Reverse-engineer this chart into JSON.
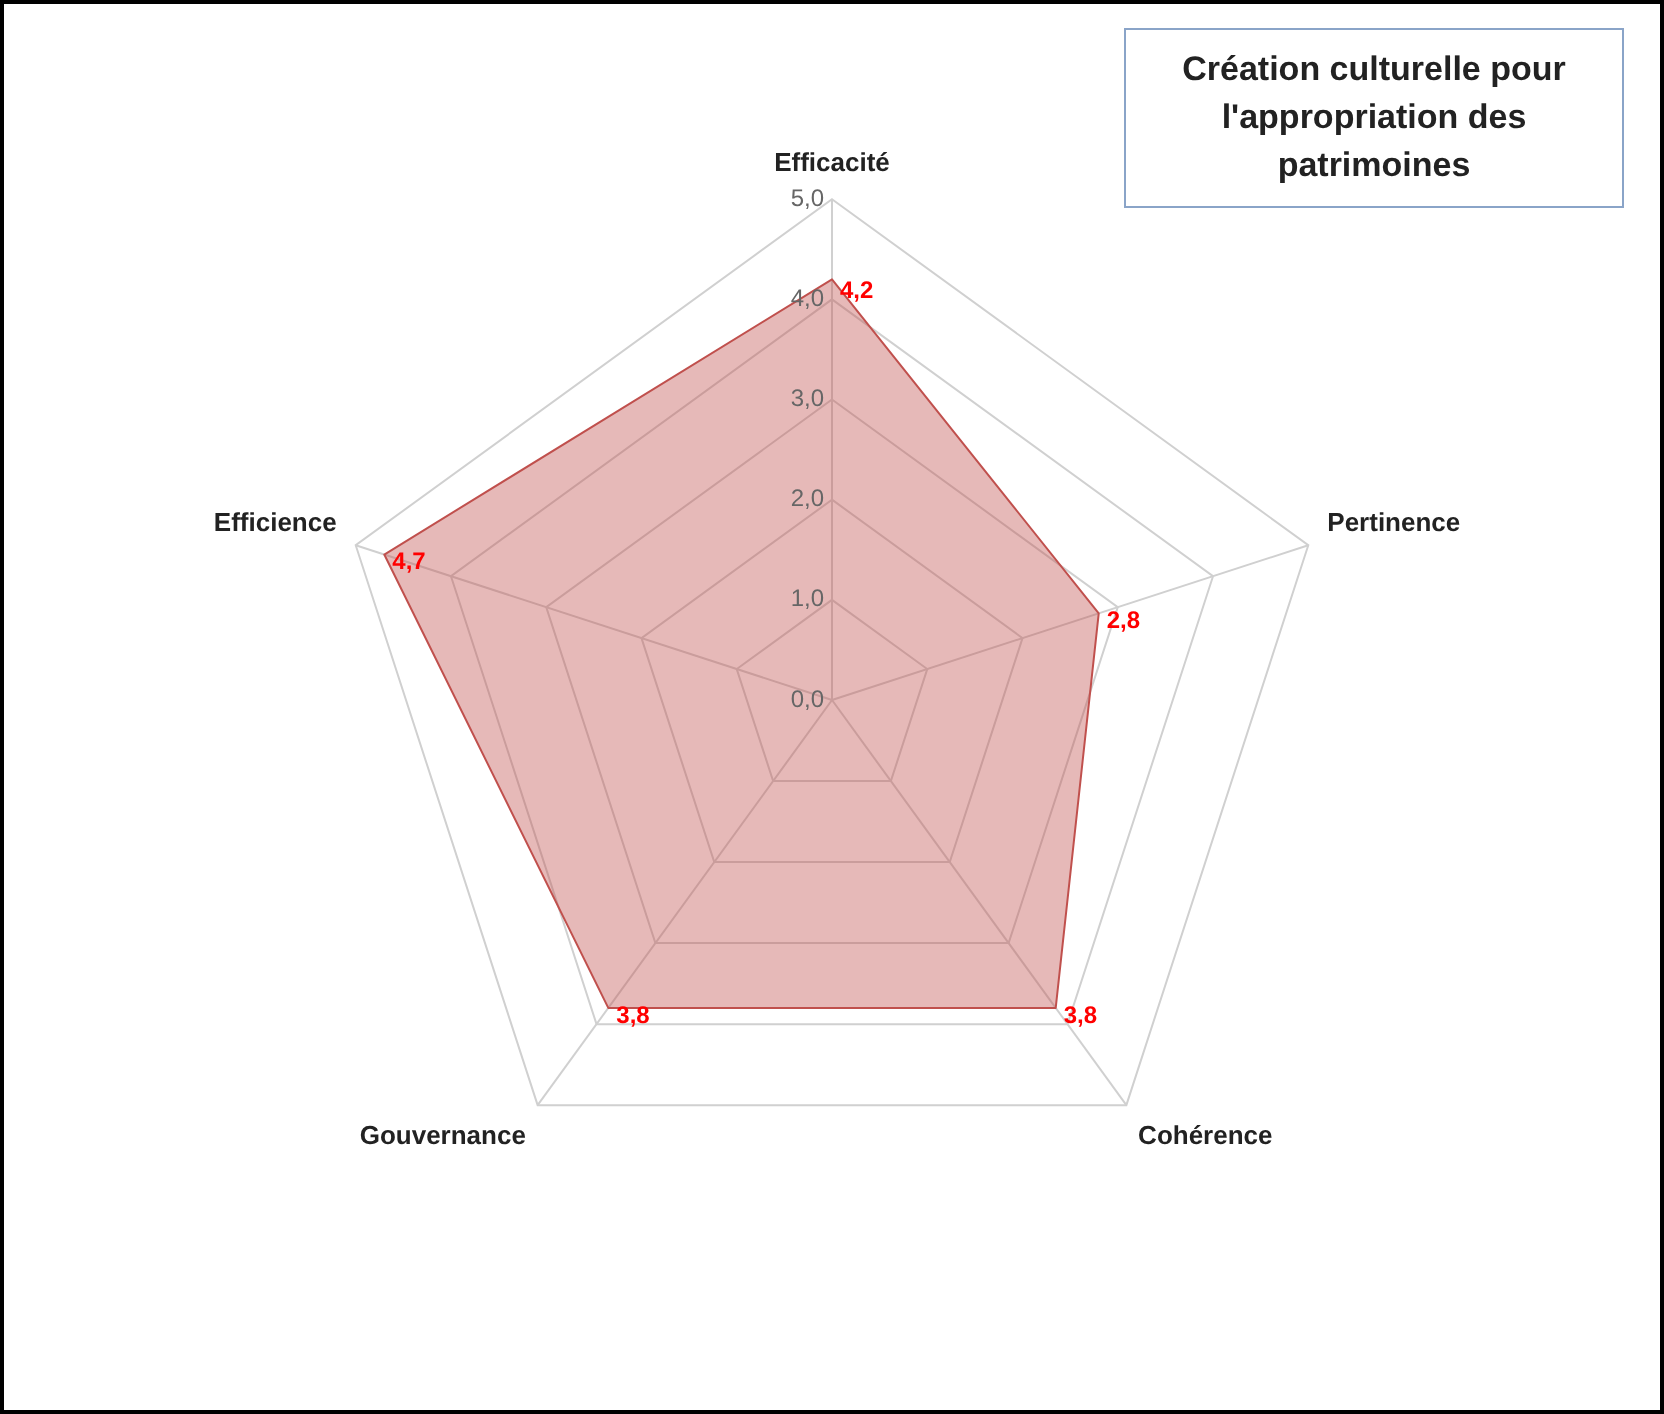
{
  "chart_data": {
    "type": "radar",
    "title": "Création culturelle pour l'appropriation des patrimoines",
    "categories": [
      "Efficacité",
      "Pertinence",
      "Cohérence",
      "Gouvernance",
      "Efficience"
    ],
    "series": [
      {
        "color": "#c0504d",
        "values": [
          4.2,
          2.8,
          3.8,
          3.8,
          4.7
        ],
        "value_labels": [
          "4,2",
          "2,8",
          "3,8",
          "3,8",
          "4,7"
        ]
      }
    ],
    "ylim": [
      0,
      5
    ],
    "yticks": [
      {
        "value": 0,
        "label": "0,0"
      },
      {
        "value": 1,
        "label": "1,0"
      },
      {
        "value": 2,
        "label": "2,0"
      },
      {
        "value": 3,
        "label": "3,0"
      },
      {
        "value": 4,
        "label": "4,0"
      },
      {
        "value": 5,
        "label": "5,0"
      }
    ],
    "grid": true,
    "legend": false,
    "marker": "none"
  }
}
